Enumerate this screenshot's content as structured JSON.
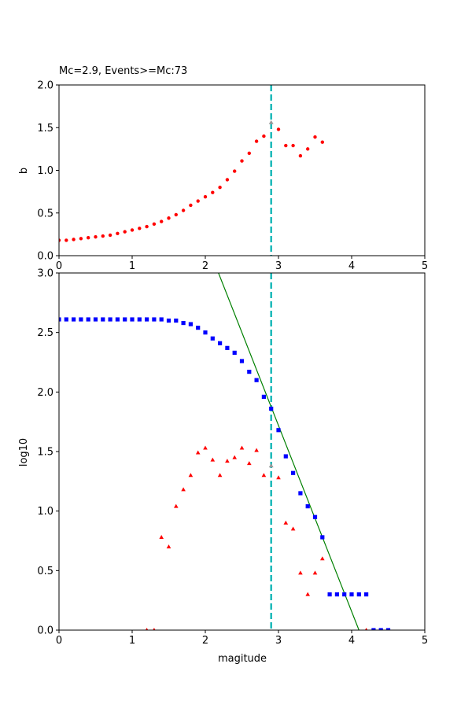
{
  "chart_data": [
    {
      "type": "scatter",
      "title": "Mc=2.9, Events>=Mc:73",
      "xlabel": "",
      "ylabel": "b",
      "xlim": [
        0,
        5
      ],
      "ylim": [
        0,
        2.0
      ],
      "xticks": [
        "0",
        "1",
        "2",
        "3",
        "4",
        "5"
      ],
      "yticks": [
        "0.0",
        "0.5",
        "1.0",
        "1.5",
        "2.0"
      ],
      "grid": false,
      "colors": {
        "b_values": "#ff0000",
        "mc_line": "#1ab8b8",
        "highlight": "#999999"
      },
      "mc_line_x": 2.9,
      "series": [
        {
          "x": [
            0.0,
            0.1,
            0.2,
            0.3,
            0.4,
            0.5,
            0.6,
            0.7,
            0.8,
            0.9,
            1.0,
            1.1,
            1.2,
            1.3,
            1.4,
            1.5,
            1.6,
            1.7,
            1.8,
            1.9,
            2.0,
            2.1,
            2.2,
            2.3,
            2.4,
            2.5,
            2.6,
            2.7,
            2.8,
            3.0,
            3.1,
            3.2,
            3.3,
            3.4,
            3.5,
            3.6
          ],
          "values": [
            0.18,
            0.18,
            0.19,
            0.2,
            0.21,
            0.22,
            0.23,
            0.24,
            0.26,
            0.28,
            0.3,
            0.32,
            0.34,
            0.37,
            0.4,
            0.44,
            0.48,
            0.53,
            0.59,
            0.64,
            0.69,
            0.74,
            0.8,
            0.89,
            0.99,
            1.11,
            1.2,
            1.34,
            1.4,
            1.48,
            1.29,
            1.29,
            1.17,
            1.25,
            1.39,
            1.33
          ]
        }
      ],
      "highlight_point": {
        "x": 2.9,
        "y": 1.56
      }
    },
    {
      "type": "scatter",
      "title": "",
      "xlabel": "magitude",
      "ylabel": "log10",
      "xlim": [
        0,
        5
      ],
      "ylim": [
        0,
        3.0
      ],
      "xticks": [
        "0",
        "1",
        "2",
        "3",
        "4",
        "5"
      ],
      "yticks": [
        "0.0",
        "0.5",
        "1.0",
        "1.5",
        "2.0",
        "2.5",
        "3.0"
      ],
      "grid": false,
      "colors": {
        "cumulative": "#0000ff",
        "noncumulative": "#ff0000",
        "fit": "#008000",
        "mc_line": "#1ab8b8",
        "highlight": "#999999"
      },
      "mc_line_x": 2.9,
      "series": [
        {
          "marker": "square",
          "x": [
            0.0,
            0.1,
            0.2,
            0.3,
            0.4,
            0.5,
            0.6,
            0.7,
            0.8,
            0.9,
            1.0,
            1.1,
            1.2,
            1.3,
            1.4,
            1.5,
            1.6,
            1.7,
            1.8,
            1.9,
            2.0,
            2.1,
            2.2,
            2.3,
            2.4,
            2.5,
            2.6,
            2.7,
            2.8,
            2.9,
            3.0,
            3.1,
            3.2,
            3.3,
            3.4,
            3.5,
            3.6,
            3.7,
            3.8,
            3.9,
            4.0,
            4.1,
            4.2,
            4.3,
            4.4,
            4.5
          ],
          "values": [
            2.61,
            2.61,
            2.61,
            2.61,
            2.61,
            2.61,
            2.61,
            2.61,
            2.61,
            2.61,
            2.61,
            2.61,
            2.61,
            2.61,
            2.61,
            2.6,
            2.6,
            2.58,
            2.57,
            2.54,
            2.5,
            2.45,
            2.41,
            2.37,
            2.33,
            2.26,
            2.17,
            2.1,
            1.96,
            1.86,
            1.68,
            1.46,
            1.32,
            1.15,
            1.04,
            0.95,
            0.78,
            0.3,
            0.3,
            0.3,
            0.3,
            0.3,
            0.3,
            0.0,
            0.0,
            0.0
          ]
        },
        {
          "marker": "triangle",
          "x": [
            1.2,
            1.3,
            1.4,
            1.5,
            1.6,
            1.7,
            1.8,
            1.9,
            2.0,
            2.1,
            2.2,
            2.3,
            2.4,
            2.5,
            2.6,
            2.7,
            2.8,
            3.0,
            3.1,
            3.2,
            3.3,
            3.4,
            3.5,
            3.6,
            4.2
          ],
          "values": [
            0.0,
            0.0,
            0.78,
            0.7,
            1.04,
            1.18,
            1.3,
            1.49,
            1.53,
            1.43,
            1.3,
            1.42,
            1.45,
            1.53,
            1.4,
            1.51,
            1.3,
            1.28,
            0.9,
            0.85,
            0.48,
            0.3,
            0.48,
            0.6,
            0.0
          ]
        },
        {
          "marker": "line",
          "x": [
            2.18,
            4.1
          ],
          "values": [
            3.0,
            0.0
          ]
        }
      ],
      "highlight_point": {
        "x": 2.9,
        "y": 1.38
      }
    }
  ]
}
